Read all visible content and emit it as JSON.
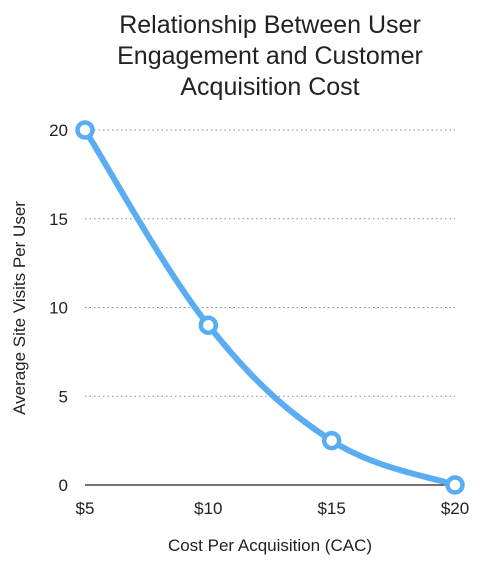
{
  "chart_data": {
    "type": "line",
    "title": [
      "Relationship Between User",
      "Engagement and Customer",
      "Acquisition Cost"
    ],
    "xlabel": "Cost Per Acquisition (CAC)",
    "ylabel": "Average Site Visits Per User",
    "categories": [
      "$5",
      "$10",
      "$15",
      "$20"
    ],
    "x": [
      5,
      10,
      15,
      20
    ],
    "y": [
      20,
      9,
      2.5,
      0
    ],
    "yticks": [
      0,
      5,
      10,
      15,
      20
    ],
    "ylim": [
      0,
      20
    ],
    "grid": true,
    "grid_style": "dotted",
    "series_color": "#5aacf3"
  }
}
